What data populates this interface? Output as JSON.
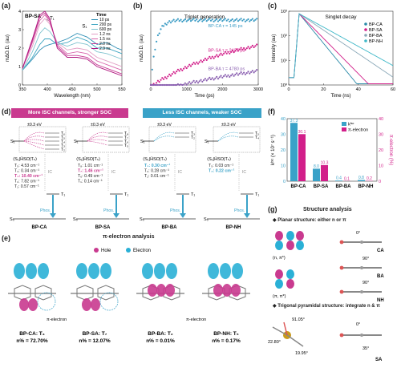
{
  "panels": {
    "a": {
      "label": "(a)",
      "title": "BP-SA",
      "ylabel": "mΔO.D. (au)",
      "xlabel": "Wavelength (nm)",
      "legend_title": "Time",
      "peak_labels": [
        "T₁",
        "S₁"
      ]
    },
    "b": {
      "label": "(b)",
      "title": "Triplet generation",
      "ylabel": "mΔO.D. (au)",
      "xlabel": "Time (ps)",
      "series_labels": [
        "BP-CA τ = 145 ps",
        "BP-SA τ = 2427 ps",
        "BP-BA τ = 4780 ps"
      ]
    },
    "c": {
      "label": "(c)",
      "title": "Singlet decay",
      "ylabel": "Intensity (au)",
      "xlabel": "Time (ns)",
      "y_ticks": [
        "10⁰",
        "10¹",
        "10²",
        "10³"
      ]
    },
    "d": {
      "label": "(d)",
      "banner_left": "More ISC channels, stronger SOC",
      "banner_right": "Less ISC channels, weaker SOC",
      "energy_window": "±0.3 eV",
      "ic_label": "IC",
      "phos_label": "Phos.",
      "s0_label": "S₀",
      "s1_label": "S₁",
      "t1_label": "T₁",
      "molecules": [
        {
          "name": "BP-CA",
          "header": "⟨S₁|ĤSO|Tₙ⟩",
          "states": [
            "T₆",
            "T₅",
            "T₄",
            "T₃",
            "T₂"
          ],
          "socs": [
            "T₅: 4.53 cm⁻¹",
            "T₄: 0.34 cm⁻¹",
            "T₃: 10.40 cm⁻¹",
            "T₂: 7.82 cm⁻¹",
            "T₁: 0.57 cm⁻¹"
          ]
        },
        {
          "name": "BP-SA",
          "header": "⟨S₁|ĤSO|Tₙ⟩",
          "states": [
            "T₈",
            "T₇",
            "T₆",
            "T₅"
          ],
          "socs": [
            "T₈: 1.01 cm⁻¹",
            "T₇: 1.46 cm⁻¹",
            "T₆: 0.49 cm⁻¹",
            "T₁: 0.14 cm⁻¹"
          ]
        },
        {
          "name": "BP-BA",
          "header": "⟨S₁|ĤSO|Tₙ⟩",
          "states": [
            "T₃",
            "T₂"
          ],
          "socs": [
            "T₃: 0.30 cm⁻¹",
            "T₂: 0.28 cm⁻¹",
            "T₁: 0.01 cm⁻¹"
          ]
        },
        {
          "name": "BP-NH",
          "header": "⟨S₁|ĤSO|Tₙ⟩",
          "states": [
            "T₅",
            "T₄"
          ],
          "socs": [
            "T₅: 0.03 cm⁻¹",
            "T₄: 0.22 cm⁻¹"
          ]
        }
      ]
    },
    "e": {
      "label": "(e)",
      "title": "π-electron analysis",
      "legend": [
        "Hole",
        "Electron"
      ],
      "pi_label": "π-electron",
      "captions": [
        {
          "name": "BP-CA: T₃",
          "value": "n% = 72.70%"
        },
        {
          "name": "BP-SA: T₇",
          "value": "n% = 12.07%"
        },
        {
          "name": "BP-BA: T₂",
          "value": "n% = 0.01%"
        },
        {
          "name": "BP-NH: T₅",
          "value": "n% = 0.17%"
        }
      ]
    },
    "f": {
      "label": "(f)",
      "ylabel_left": "kᴵˢᶜ (× 10⁷ s⁻¹)",
      "ylabel_right": "π-electron (%)",
      "legend": [
        "kᴵˢᶜ",
        "π-electron"
      ]
    },
    "g": {
      "label": "(g)",
      "title": "Structure analysis",
      "planar_header": "◆ Planar structure: either n or π",
      "trig_header": "◆ Trigonal pyramidal structure: integrate n & π",
      "labels_nn": "(n, π*)",
      "labels_pp": "(π, π*)",
      "mol_names": [
        "CA",
        "BA",
        "NH",
        "SA"
      ],
      "angles": [
        "0°",
        "90°",
        "90°",
        "91.05°",
        "22.80°",
        "19.95°",
        "0°",
        "35°"
      ]
    }
  },
  "chart_data": [
    {
      "type": "line",
      "title": "BP-SA",
      "xlabel": "Wavelength (nm)",
      "ylabel": "mΔO.D. (au)",
      "xlim": [
        350,
        550
      ],
      "x_ticks": [
        350,
        400,
        450,
        500,
        550
      ],
      "y_ticks": [
        0,
        1,
        2,
        3,
        4
      ],
      "ylim": [
        0,
        4
      ],
      "x": [
        350,
        370,
        385,
        395,
        405,
        420,
        440,
        460,
        480,
        500,
        520,
        540,
        550
      ],
      "series": [
        {
          "name": "10 ps",
          "color": "#2f8fb5",
          "values": [
            0.8,
            1.4,
            1.9,
            2.1,
            2.2,
            2.3,
            2.5,
            2.8,
            2.6,
            2.2,
            2.3,
            2.0,
            1.9
          ]
        },
        {
          "name": "200 ps",
          "color": "#3fa6c2",
          "values": [
            0.8,
            1.5,
            2.2,
            2.5,
            2.5,
            2.2,
            2.3,
            2.6,
            2.4,
            2.0,
            2.0,
            1.8,
            1.7
          ]
        },
        {
          "name": "600 ps",
          "color": "#7fc3cf",
          "values": [
            0.8,
            1.8,
            2.8,
            3.1,
            2.9,
            2.3,
            2.1,
            2.3,
            2.2,
            1.8,
            1.7,
            1.5,
            1.4
          ]
        },
        {
          "name": "1.2 ns",
          "color": "#e3a0c6",
          "values": [
            0.9,
            2.1,
            3.3,
            3.6,
            3.3,
            2.3,
            1.9,
            2.0,
            1.9,
            1.5,
            1.3,
            1.1,
            1.0
          ]
        },
        {
          "name": "1.5 ns",
          "color": "#d968ad",
          "values": [
            0.9,
            2.3,
            3.5,
            3.8,
            3.4,
            2.2,
            1.7,
            1.8,
            1.7,
            1.3,
            1.1,
            0.9,
            0.8
          ]
        },
        {
          "name": "2.0 ns",
          "color": "#c63a93",
          "values": [
            0.9,
            2.4,
            3.7,
            3.9,
            3.5,
            2.1,
            1.6,
            1.6,
            1.5,
            1.1,
            0.9,
            0.7,
            0.6
          ]
        },
        {
          "name": "2.9 ns",
          "color": "#b0177f",
          "values": [
            0.9,
            2.5,
            3.8,
            4.0,
            3.6,
            2.0,
            1.5,
            1.5,
            1.4,
            1.0,
            0.8,
            0.6,
            0.5
          ]
        }
      ]
    },
    {
      "type": "scatter",
      "title": "Triplet generation",
      "xlabel": "Time (ps)",
      "ylabel": "mΔO.D. (au)",
      "xlim": [
        0,
        3000
      ],
      "x_ticks": [
        0,
        1000,
        2000,
        3000
      ],
      "ylim": [
        0,
        1
      ],
      "series": [
        {
          "name": "BP-CA",
          "color": "#3a9bc4",
          "tau_ps": 145,
          "plateau": 0.88
        },
        {
          "name": "BP-SA",
          "color": "#d21f8a",
          "tau_ps": 2427,
          "plateau": 0.78
        },
        {
          "name": "BP-BA",
          "color": "#8a5fb0",
          "tau_ps": 4780,
          "plateau": 0.62
        }
      ]
    },
    {
      "type": "line",
      "title": "Singlet decay",
      "xlabel": "Time (ns)",
      "ylabel": "Intensity (au)",
      "xlim": [
        0,
        60
      ],
      "x_ticks": [
        0,
        20,
        40,
        60
      ],
      "ylim_log10": [
        0,
        3
      ],
      "log_y": true,
      "series": [
        {
          "name": "BP-CA",
          "color": "#2a8aa8",
          "decay_ns": 5
        },
        {
          "name": "BP-SA",
          "color": "#d21f8a",
          "decay_ns": 6
        },
        {
          "name": "BP-BA",
          "color": "#8aa8b8",
          "decay_ns": 9
        },
        {
          "name": "BP-NH",
          "color": "#3fb8c8",
          "decay_ns": 11
        }
      ]
    },
    {
      "type": "bar",
      "categories": [
        "BP-CA",
        "BP-SA",
        "BP-BA",
        "BP-NH"
      ],
      "ylim": [
        0,
        40
      ],
      "ylim_right": [
        0,
        40
      ],
      "y_ticks": [
        0,
        10,
        20,
        30,
        40
      ],
      "series": [
        {
          "name": "k_ISC",
          "axis": "left",
          "color": "#3aa2c8",
          "values": [
            37.3,
            8.0,
            0.4,
            0.8
          ],
          "labels": [
            "37.3",
            "8.0",
            "0.4",
            "0.8"
          ]
        },
        {
          "name": "π-electron",
          "axis": "right",
          "color": "#d21f8a",
          "values": [
            30.1,
            10.3,
            0.1,
            0.2
          ],
          "labels": [
            "30.1",
            "10.3",
            "0.1",
            "0.2"
          ]
        }
      ]
    }
  ]
}
